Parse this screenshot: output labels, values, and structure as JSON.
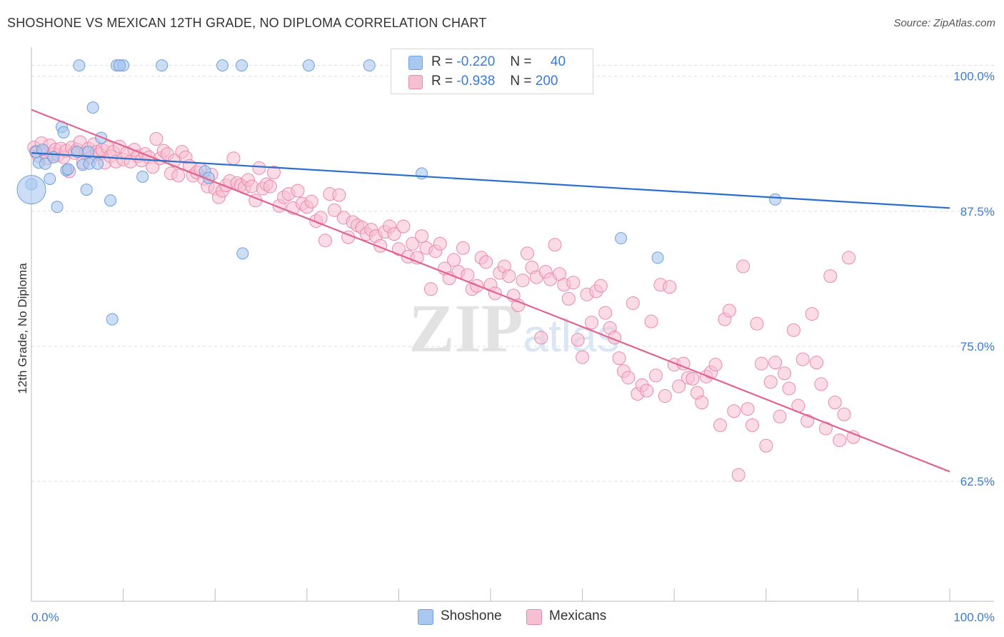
{
  "title": "SHOSHONE VS MEXICAN 12TH GRADE, NO DIPLOMA CORRELATION CHART",
  "source": "Source: ZipAtlas.com",
  "watermark": "ZIPatlas",
  "colors": {
    "shoshone_fill": "#a9c8f0",
    "shoshone_stroke": "#6f9fdc",
    "shoshone_line": "#2a6fcc",
    "mexicans_fill": "#f7c0d2",
    "mexicans_stroke": "#e98aaa",
    "mexicans_line": "#e0648e",
    "axis_text": "#3a7bd5",
    "grid": "#dddddd"
  },
  "legend": {
    "rows": [
      {
        "r_label": "R =",
        "r_value": "-0.220",
        "n_label": "N =",
        "n_value": "40"
      },
      {
        "r_label": "R =",
        "r_value": "-0.938",
        "n_label": "N =",
        "n_value": "200"
      }
    ],
    "bottom": [
      "Shoshone",
      "Mexicans"
    ]
  },
  "chart_data": {
    "type": "scatter",
    "xlabel": "",
    "ylabel": "12th Grade, No Diploma",
    "xlim": [
      0,
      100
    ],
    "ylim": [
      51.4,
      101.9
    ],
    "x_tick_labels": [
      "0.0%",
      "100.0%"
    ],
    "y_ticks": [
      62.5,
      75.0,
      87.5,
      100.0
    ],
    "y_tick_labels": [
      "62.5%",
      "75.0%",
      "87.5%",
      "100.0%"
    ],
    "grid": true,
    "legend_position": "top-center",
    "series": [
      {
        "name": "Shoshone",
        "r": -0.22,
        "n": 40,
        "trend": {
          "x": [
            0,
            100
          ],
          "y": [
            92.9,
            87.8
          ]
        },
        "points": [
          [
            0.0,
            90.0
          ],
          [
            0.5,
            93.0
          ],
          [
            0.8,
            92.0
          ],
          [
            1.2,
            93.2
          ],
          [
            1.5,
            91.9
          ],
          [
            2.0,
            90.5
          ],
          [
            2.4,
            92.5
          ],
          [
            2.8,
            87.9
          ],
          [
            3.3,
            95.3
          ],
          [
            3.5,
            94.8
          ],
          [
            3.8,
            91.3
          ],
          [
            4.0,
            91.4
          ],
          [
            5.0,
            93.0
          ],
          [
            5.2,
            101.0
          ],
          [
            5.6,
            91.8
          ],
          [
            6.2,
            93.0
          ],
          [
            6.0,
            89.5
          ],
          [
            6.3,
            91.9
          ],
          [
            6.7,
            97.1
          ],
          [
            7.2,
            91.9
          ],
          [
            7.6,
            94.3
          ],
          [
            8.6,
            88.5
          ],
          [
            8.8,
            77.5
          ],
          [
            9.3,
            101.0
          ],
          [
            10.0,
            101.0
          ],
          [
            9.6,
            101.0
          ],
          [
            12.1,
            90.7
          ],
          [
            14.2,
            101.0
          ],
          [
            18.9,
            91.2
          ],
          [
            19.3,
            90.6
          ],
          [
            20.8,
            101.0
          ],
          [
            22.9,
            101.0
          ],
          [
            23.0,
            83.6
          ],
          [
            30.2,
            101.0
          ],
          [
            36.8,
            101.0
          ],
          [
            42.5,
            91.0
          ],
          [
            64.2,
            85.0
          ],
          [
            68.2,
            83.2
          ],
          [
            81.0,
            88.6
          ],
          [
            0.0,
            89.5
          ]
        ]
      },
      {
        "name": "Mexicans",
        "r": -0.938,
        "n": 200,
        "trend": {
          "x": [
            0,
            100
          ],
          "y": [
            96.9,
            63.4
          ]
        },
        "points": [
          [
            0.3,
            93.4
          ],
          [
            0.5,
            93.0
          ],
          [
            0.8,
            92.6
          ],
          [
            1.1,
            93.8
          ],
          [
            1.4,
            93.0
          ],
          [
            1.7,
            92.4
          ],
          [
            2.0,
            93.6
          ],
          [
            2.3,
            92.8
          ],
          [
            2.6,
            93.2
          ],
          [
            2.9,
            92.7
          ],
          [
            3.2,
            93.3
          ],
          [
            3.5,
            92.5
          ],
          [
            3.8,
            93.1
          ],
          [
            4.1,
            91.2
          ],
          [
            4.4,
            93.4
          ],
          [
            4.7,
            92.9
          ],
          [
            5.0,
            93.2
          ],
          [
            5.3,
            93.9
          ],
          [
            5.6,
            92.0
          ],
          [
            5.9,
            92.9
          ],
          [
            6.2,
            93.3
          ],
          [
            6.5,
            92.5
          ],
          [
            6.8,
            93.7
          ],
          [
            7.1,
            93.0
          ],
          [
            7.4,
            92.8
          ],
          [
            7.7,
            93.2
          ],
          [
            8.0,
            92.0
          ],
          [
            8.3,
            93.4
          ],
          [
            8.6,
            92.6
          ],
          [
            8.9,
            93.0
          ],
          [
            9.2,
            92.1
          ],
          [
            9.6,
            93.5
          ],
          [
            10.0,
            92.3
          ],
          [
            10.4,
            92.9
          ],
          [
            10.8,
            92.1
          ],
          [
            11.2,
            93.2
          ],
          [
            11.6,
            92.6
          ],
          [
            12.0,
            92.2
          ],
          [
            12.4,
            92.8
          ],
          [
            12.8,
            92.5
          ],
          [
            13.2,
            91.6
          ],
          [
            13.6,
            94.2
          ],
          [
            14.0,
            92.4
          ],
          [
            14.4,
            93.1
          ],
          [
            14.8,
            92.8
          ],
          [
            15.2,
            91.0
          ],
          [
            15.6,
            92.2
          ],
          [
            16.0,
            90.8
          ],
          [
            16.4,
            93.0
          ],
          [
            16.8,
            92.5
          ],
          [
            17.2,
            91.7
          ],
          [
            17.6,
            90.8
          ],
          [
            18.0,
            91.1
          ],
          [
            18.4,
            91.4
          ],
          [
            18.8,
            90.5
          ],
          [
            19.2,
            89.8
          ],
          [
            19.6,
            90.9
          ],
          [
            20.0,
            89.6
          ],
          [
            20.4,
            88.8
          ],
          [
            20.8,
            89.4
          ],
          [
            21.2,
            89.9
          ],
          [
            21.6,
            90.3
          ],
          [
            22.0,
            92.4
          ],
          [
            22.4,
            90.1
          ],
          [
            22.8,
            89.9
          ],
          [
            23.2,
            89.7
          ],
          [
            23.6,
            90.4
          ],
          [
            24.0,
            89.8
          ],
          [
            24.4,
            88.5
          ],
          [
            24.8,
            91.5
          ],
          [
            25.2,
            89.6
          ],
          [
            25.6,
            90.0
          ],
          [
            26.0,
            89.8
          ],
          [
            26.4,
            91.1
          ],
          [
            27.0,
            88.0
          ],
          [
            27.5,
            88.8
          ],
          [
            28.0,
            89.1
          ],
          [
            28.5,
            87.8
          ],
          [
            29.0,
            89.4
          ],
          [
            29.5,
            88.2
          ],
          [
            30.0,
            87.9
          ],
          [
            30.5,
            88.4
          ],
          [
            31.0,
            86.6
          ],
          [
            31.5,
            86.9
          ],
          [
            32.0,
            84.8
          ],
          [
            32.5,
            89.1
          ],
          [
            33.0,
            87.6
          ],
          [
            33.5,
            89.0
          ],
          [
            34.0,
            86.9
          ],
          [
            34.5,
            85.1
          ],
          [
            35.0,
            86.5
          ],
          [
            35.5,
            86.2
          ],
          [
            36.0,
            86.0
          ],
          [
            36.5,
            85.4
          ],
          [
            37.0,
            85.8
          ],
          [
            37.5,
            85.2
          ],
          [
            38.0,
            84.3
          ],
          [
            38.5,
            85.6
          ],
          [
            39.0,
            86.1
          ],
          [
            39.5,
            85.4
          ],
          [
            40.0,
            84.0
          ],
          [
            40.5,
            86.1
          ],
          [
            41.0,
            83.3
          ],
          [
            41.5,
            84.5
          ],
          [
            42.0,
            83.2
          ],
          [
            42.5,
            85.2
          ],
          [
            43.0,
            84.1
          ],
          [
            43.5,
            80.3
          ],
          [
            44.0,
            83.8
          ],
          [
            44.5,
            84.5
          ],
          [
            45.0,
            82.2
          ],
          [
            45.5,
            81.3
          ],
          [
            46.0,
            83.0
          ],
          [
            46.5,
            81.9
          ],
          [
            47.0,
            84.1
          ],
          [
            47.5,
            81.6
          ],
          [
            48.0,
            80.3
          ],
          [
            48.5,
            80.6
          ],
          [
            49.0,
            83.2
          ],
          [
            49.5,
            82.8
          ],
          [
            50.0,
            80.7
          ],
          [
            50.5,
            79.9
          ],
          [
            51.0,
            81.8
          ],
          [
            51.5,
            82.4
          ],
          [
            52.0,
            81.5
          ],
          [
            52.5,
            79.7
          ],
          [
            53.0,
            78.8
          ],
          [
            53.5,
            81.1
          ],
          [
            54.0,
            83.6
          ],
          [
            54.5,
            82.3
          ],
          [
            55.0,
            81.4
          ],
          [
            55.5,
            75.8
          ],
          [
            56.0,
            81.9
          ],
          [
            56.5,
            81.2
          ],
          [
            57.0,
            84.4
          ],
          [
            57.5,
            81.7
          ],
          [
            58.0,
            80.7
          ],
          [
            58.5,
            79.4
          ],
          [
            59.0,
            80.9
          ],
          [
            59.5,
            75.6
          ],
          [
            60.0,
            74.0
          ],
          [
            60.5,
            79.8
          ],
          [
            61.0,
            77.2
          ],
          [
            61.5,
            80.1
          ],
          [
            62.0,
            80.6
          ],
          [
            62.5,
            78.1
          ],
          [
            63.0,
            76.7
          ],
          [
            63.5,
            75.8
          ],
          [
            64.0,
            73.9
          ],
          [
            64.5,
            72.7
          ],
          [
            65.0,
            72.1
          ],
          [
            65.5,
            79.0
          ],
          [
            66.0,
            70.6
          ],
          [
            66.5,
            71.4
          ],
          [
            67.0,
            70.9
          ],
          [
            67.5,
            77.3
          ],
          [
            68.0,
            72.3
          ],
          [
            68.5,
            80.7
          ],
          [
            69.0,
            70.4
          ],
          [
            69.5,
            80.5
          ],
          [
            70.0,
            73.3
          ],
          [
            70.5,
            71.3
          ],
          [
            71.0,
            73.4
          ],
          [
            71.5,
            72.1
          ],
          [
            72.0,
            72.0
          ],
          [
            72.5,
            70.7
          ],
          [
            73.0,
            69.8
          ],
          [
            73.5,
            72.2
          ],
          [
            74.0,
            72.6
          ],
          [
            74.5,
            73.3
          ],
          [
            75.0,
            67.7
          ],
          [
            75.5,
            77.5
          ],
          [
            76.0,
            78.3
          ],
          [
            76.5,
            69.0
          ],
          [
            77.0,
            63.1
          ],
          [
            77.5,
            82.4
          ],
          [
            78.0,
            69.2
          ],
          [
            78.5,
            67.7
          ],
          [
            79.0,
            77.1
          ],
          [
            79.5,
            73.4
          ],
          [
            80.0,
            65.8
          ],
          [
            80.5,
            71.7
          ],
          [
            81.0,
            73.5
          ],
          [
            81.5,
            68.5
          ],
          [
            82.0,
            72.5
          ],
          [
            82.5,
            71.1
          ],
          [
            83.0,
            76.5
          ],
          [
            83.5,
            69.5
          ],
          [
            84.0,
            73.8
          ],
          [
            84.5,
            68.1
          ],
          [
            85.0,
            78.0
          ],
          [
            85.5,
            73.5
          ],
          [
            86.0,
            71.5
          ],
          [
            86.5,
            67.4
          ],
          [
            87.0,
            81.5
          ],
          [
            87.5,
            69.8
          ],
          [
            88.0,
            66.3
          ],
          [
            88.5,
            68.7
          ],
          [
            89.0,
            83.2
          ],
          [
            89.5,
            66.6
          ]
        ]
      }
    ]
  }
}
